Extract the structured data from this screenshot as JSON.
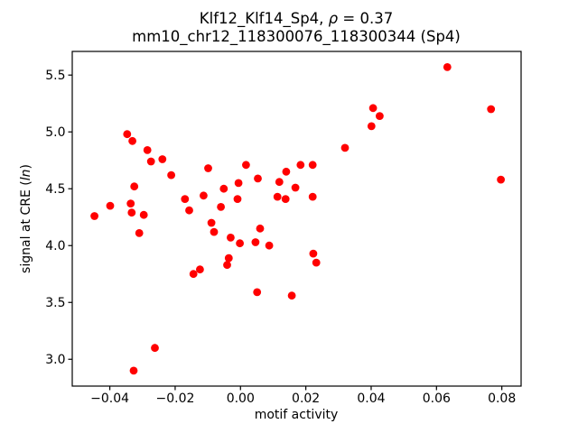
{
  "chart_data": {
    "type": "scatter",
    "title": {
      "prefix": "Klf12_Klf14_Sp4, ",
      "rho": "ρ",
      "suffix": " = 0.37",
      "line2": "mm10_chr12_118300076_118300344 (Sp4)"
    },
    "xlabel": "motif activity",
    "ylabel": {
      "prefix": "signal at CRE (",
      "italic": "ln",
      "suffix": ")"
    },
    "xlim": [
      -0.0515,
      0.0859
    ],
    "ylim": [
      2.764,
      5.708
    ],
    "xticks": [
      -0.04,
      -0.02,
      0.0,
      0.02,
      0.04,
      0.06,
      0.08
    ],
    "yticks": [
      3.0,
      3.5,
      4.0,
      4.5,
      5.0,
      5.5
    ],
    "grid": false,
    "legend": null,
    "marker_color": "#ff0000",
    "points": [
      [
        -0.0447,
        4.26
      ],
      [
        -0.0399,
        4.35
      ],
      [
        -0.0347,
        4.98
      ],
      [
        -0.0336,
        4.37
      ],
      [
        -0.0333,
        4.29
      ],
      [
        -0.0331,
        4.92
      ],
      [
        -0.0327,
        2.9
      ],
      [
        -0.0325,
        4.52
      ],
      [
        -0.031,
        4.11
      ],
      [
        -0.0296,
        4.27
      ],
      [
        -0.0285,
        4.84
      ],
      [
        -0.0274,
        4.74
      ],
      [
        -0.0262,
        3.1
      ],
      [
        -0.0239,
        4.76
      ],
      [
        -0.0212,
        4.62
      ],
      [
        -0.017,
        4.41
      ],
      [
        -0.0157,
        4.31
      ],
      [
        -0.0144,
        3.75
      ],
      [
        -0.0124,
        3.79
      ],
      [
        -0.0113,
        4.44
      ],
      [
        -0.0099,
        4.68
      ],
      [
        -0.0089,
        4.2
      ],
      [
        -0.0081,
        4.12
      ],
      [
        -0.006,
        4.34
      ],
      [
        -0.0051,
        4.5
      ],
      [
        -0.0041,
        3.83
      ],
      [
        -0.0036,
        3.89
      ],
      [
        -0.003,
        4.07
      ],
      [
        -0.0009,
        4.41
      ],
      [
        -0.0006,
        4.55
      ],
      [
        -0.0002,
        4.02
      ],
      [
        0.0017,
        4.71
      ],
      [
        0.0046,
        4.03
      ],
      [
        0.0051,
        3.59
      ],
      [
        0.0053,
        4.59
      ],
      [
        0.006,
        4.15
      ],
      [
        0.0088,
        4.0
      ],
      [
        0.0113,
        4.43
      ],
      [
        0.0119,
        4.56
      ],
      [
        0.0138,
        4.41
      ],
      [
        0.014,
        4.65
      ],
      [
        0.0157,
        3.56
      ],
      [
        0.0168,
        4.51
      ],
      [
        0.0184,
        4.71
      ],
      [
        0.0221,
        4.43
      ],
      [
        0.0221,
        4.71
      ],
      [
        0.0223,
        3.93
      ],
      [
        0.0232,
        3.85
      ],
      [
        0.032,
        4.86
      ],
      [
        0.0401,
        5.05
      ],
      [
        0.0406,
        5.21
      ],
      [
        0.0426,
        5.14
      ],
      [
        0.0633,
        5.57
      ],
      [
        0.0767,
        5.2
      ],
      [
        0.0797,
        4.58
      ]
    ]
  }
}
